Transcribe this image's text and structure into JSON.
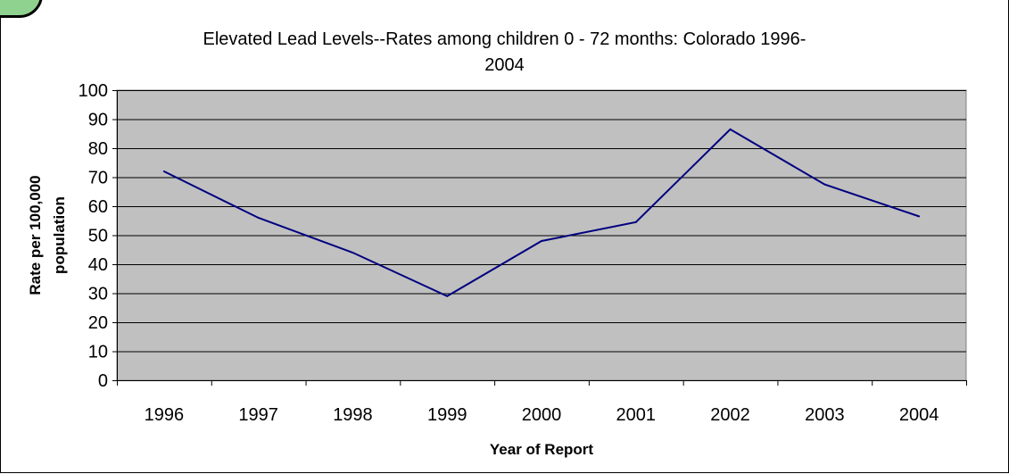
{
  "chart_data": {
    "type": "line",
    "title_line1": "Elevated Lead Levels--Rates among children 0 - 72 months: Colorado 1996-",
    "title_line2": "2004",
    "xlabel": "Year of Report",
    "ylabel_line1": "Rate per 100,000",
    "ylabel_line2": "population",
    "categories": [
      "1996",
      "1997",
      "1998",
      "1999",
      "2000",
      "2001",
      "2002",
      "2003",
      "2004"
    ],
    "series": [
      {
        "values": [
          72,
          56,
          44,
          29,
          48,
          54.5,
          86.5,
          67.5,
          56.5
        ]
      }
    ],
    "ylim": [
      0,
      100
    ],
    "yticks": [
      0,
      10,
      20,
      30,
      40,
      50,
      60,
      70,
      80,
      90,
      100
    ],
    "grid": true,
    "legend": "none",
    "colors": {
      "plot_background": "#c0c0c0",
      "line": "#000080",
      "grid": "#000000"
    }
  }
}
